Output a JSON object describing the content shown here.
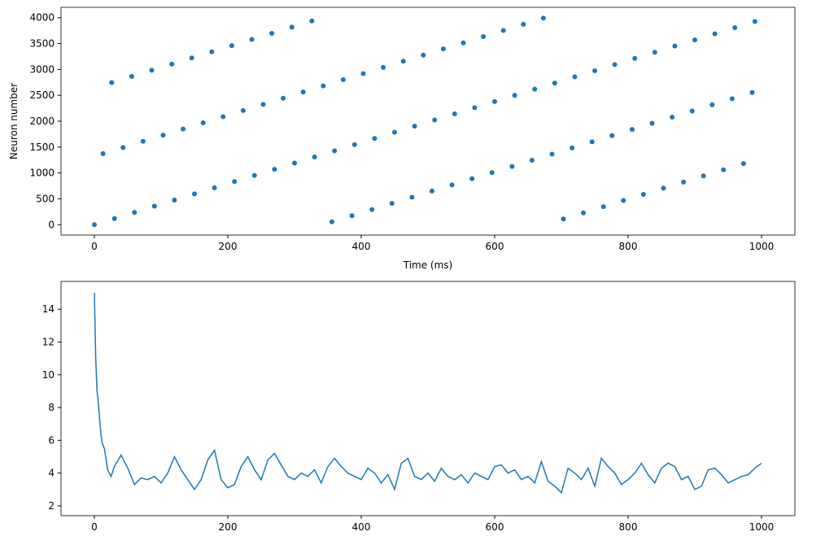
{
  "chart_data": [
    {
      "type": "scatter",
      "x_label": "Time (ms)",
      "y_label": "Neuron number",
      "color": "#1f77b4",
      "xlim": [
        -50,
        1050
      ],
      "ylim": [
        -200,
        4200
      ],
      "xticks": [
        0,
        200,
        400,
        600,
        800,
        1000
      ],
      "yticks": [
        0,
        500,
        1000,
        1500,
        2000,
        2500,
        3000,
        3500,
        4000
      ],
      "x": [
        0,
        13,
        26,
        30,
        43,
        56,
        60,
        73,
        86,
        90,
        103,
        116,
        120,
        133,
        146,
        150,
        163,
        176,
        180,
        193,
        206,
        210,
        223,
        236,
        240,
        253,
        266,
        270,
        283,
        296,
        300,
        313,
        326,
        330,
        343,
        356,
        360,
        373,
        386,
        390,
        403,
        416,
        420,
        433,
        446,
        450,
        463,
        476,
        480,
        493,
        506,
        510,
        523,
        536,
        540,
        553,
        566,
        570,
        583,
        596,
        600,
        613,
        626,
        630,
        643,
        656,
        660,
        673,
        686,
        690,
        703,
        716,
        720,
        733,
        746,
        750,
        763,
        776,
        780,
        793,
        806,
        810,
        823,
        836,
        840,
        853,
        866,
        870,
        883,
        896,
        900,
        913,
        926,
        930,
        943,
        956,
        960,
        973,
        986,
        990
      ],
      "values": [
        0,
        1373,
        2746,
        119,
        1492,
        2865,
        238,
        1611,
        2984,
        357,
        1730,
        3103,
        476,
        1849,
        3222,
        595,
        1968,
        3341,
        714,
        2087,
        3460,
        833,
        2206,
        3579,
        952,
        2325,
        3698,
        1071,
        2444,
        3817,
        1190,
        2563,
        3936,
        1309,
        2682,
        55,
        1428,
        2801,
        174,
        1547,
        2920,
        293,
        1666,
        3039,
        412,
        1785,
        3158,
        531,
        1904,
        3277,
        650,
        2023,
        3396,
        769,
        2142,
        3515,
        888,
        2261,
        3634,
        1007,
        2380,
        3753,
        1126,
        2499,
        3872,
        1245,
        2618,
        3991,
        1364,
        2737,
        110,
        1483,
        2856,
        229,
        1602,
        2975,
        348,
        1721,
        3094,
        467,
        1840,
        3213,
        586,
        1959,
        3332,
        705,
        2078,
        3451,
        824,
        2197,
        3570,
        943,
        2316,
        3689,
        1062,
        2435,
        3808,
        1181,
        2554,
        3927
      ]
    },
    {
      "type": "line",
      "color": "#1f77b4",
      "xlim": [
        -50,
        1050
      ],
      "ylim": [
        1.4,
        15.7
      ],
      "xticks": [
        0,
        200,
        400,
        600,
        800,
        1000
      ],
      "yticks": [
        2,
        4,
        6,
        8,
        10,
        12,
        14
      ],
      "x": [
        0,
        2,
        4,
        6,
        8,
        10,
        12,
        15,
        20,
        25,
        30,
        40,
        50,
        60,
        70,
        80,
        90,
        100,
        110,
        120,
        130,
        140,
        150,
        160,
        170,
        180,
        190,
        200,
        210,
        220,
        230,
        240,
        250,
        260,
        270,
        280,
        290,
        300,
        310,
        320,
        330,
        340,
        350,
        360,
        370,
        380,
        390,
        400,
        410,
        420,
        430,
        440,
        450,
        460,
        470,
        480,
        490,
        500,
        510,
        520,
        530,
        540,
        550,
        560,
        570,
        580,
        590,
        600,
        610,
        620,
        630,
        640,
        650,
        660,
        670,
        680,
        690,
        700,
        710,
        720,
        730,
        740,
        750,
        760,
        770,
        780,
        790,
        800,
        810,
        820,
        830,
        840,
        850,
        860,
        870,
        880,
        890,
        900,
        910,
        920,
        930,
        940,
        950,
        960,
        970,
        980,
        990,
        1000
      ],
      "values": [
        15,
        11,
        9,
        8.3,
        7.2,
        6.3,
        5.8,
        5.5,
        4.2,
        3.8,
        4.4,
        5.1,
        4.3,
        3.3,
        3.7,
        3.6,
        3.8,
        3.4,
        4.0,
        5.0,
        4.2,
        3.6,
        3.0,
        3.6,
        4.8,
        5.4,
        3.6,
        3.1,
        3.3,
        4.4,
        5.0,
        4.2,
        3.6,
        4.8,
        5.2,
        4.5,
        3.8,
        3.6,
        4.0,
        3.8,
        4.2,
        3.4,
        4.4,
        4.9,
        4.4,
        4.0,
        3.8,
        3.6,
        4.3,
        4.0,
        3.4,
        3.9,
        3.0,
        4.6,
        4.9,
        3.8,
        3.6,
        4.0,
        3.5,
        4.3,
        3.8,
        3.6,
        3.9,
        3.4,
        4.0,
        3.8,
        3.6,
        4.4,
        4.5,
        4.0,
        4.2,
        3.6,
        3.8,
        3.4,
        4.7,
        3.5,
        3.2,
        2.8,
        4.3,
        4.0,
        3.6,
        4.3,
        3.2,
        4.9,
        4.4,
        4.0,
        3.3,
        3.6,
        4.0,
        4.6,
        3.9,
        3.4,
        4.3,
        4.6,
        4.4,
        3.6,
        3.8,
        3.0,
        3.2,
        4.2,
        4.3,
        3.9,
        3.4,
        3.6,
        3.8,
        3.9,
        4.3,
        4.6
      ]
    }
  ]
}
